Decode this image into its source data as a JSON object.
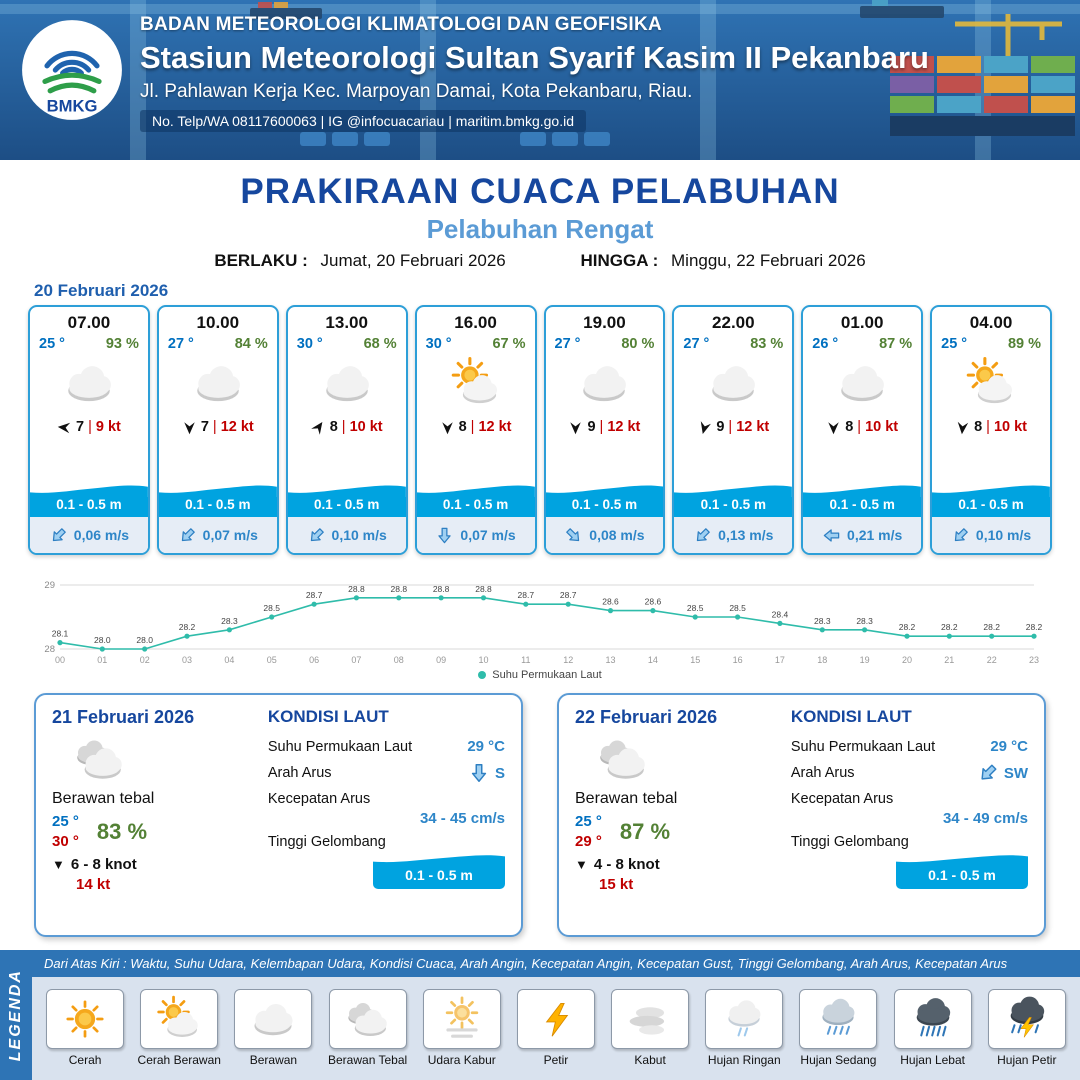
{
  "ui": {
    "separator": "|"
  },
  "header": {
    "org": "BADAN METEOROLOGI KLIMATOLOGI DAN GEOFISIKA",
    "station": "Stasiun Meteorologi Sultan Syarif Kasim II Pekanbaru",
    "address": "Jl. Pahlawan Kerja Kec. Marpoyan Damai, Kota Pekanbaru, Riau.",
    "contact": "No. Telp/WA 08117600063 | IG @infocuacariau | maritim.bmkg.go.id",
    "logo_text": "BMKG"
  },
  "title": {
    "main": "PRAKIRAAN CUACA PELABUHAN",
    "subtitle": "Pelabuhan Rengat",
    "valid_from_label": "BERLAKU :",
    "valid_from": "Jumat, 20 Februari 2026",
    "valid_to_label": "HINGGA :",
    "valid_to": "Minggu, 22 Februari 2026"
  },
  "forecast_date": "20 Februari 2026",
  "forecast_cards": [
    {
      "time": "07.00",
      "temp": "25 °",
      "humidity": "93 %",
      "icon": "berawan",
      "wind_dir_deg": 95,
      "wind_speed": "7",
      "gust": "9 kt",
      "wave_height": "0.1 - 0.5 m",
      "current_dir": "SW",
      "current_dir_deg": 45,
      "current_speed": "0,06 m/s"
    },
    {
      "time": "10.00",
      "temp": "27 °",
      "humidity": "84 %",
      "icon": "berawan",
      "wind_dir_deg": 0,
      "wind_speed": "7",
      "gust": "12 kt",
      "wave_height": "0.1 - 0.5 m",
      "current_dir": "SW",
      "current_dir_deg": 45,
      "current_speed": "0,07 m/s"
    },
    {
      "time": "13.00",
      "temp": "30 °",
      "humidity": "68 %",
      "icon": "berawan",
      "wind_dir_deg": 215,
      "wind_speed": "8",
      "gust": "10 kt",
      "wave_height": "0.1 - 0.5 m",
      "current_dir": "SW",
      "current_dir_deg": 45,
      "current_speed": "0,10 m/s"
    },
    {
      "time": "16.00",
      "temp": "30 °",
      "humidity": "67 %",
      "icon": "cerah-berawan",
      "wind_dir_deg": 0,
      "wind_speed": "8",
      "gust": "12 kt",
      "wave_height": "0.1 - 0.5 m",
      "current_dir": "S",
      "current_dir_deg": 0,
      "current_speed": "0,07 m/s"
    },
    {
      "time": "19.00",
      "temp": "27 °",
      "humidity": "80 %",
      "icon": "berawan",
      "wind_dir_deg": 0,
      "wind_speed": "9",
      "gust": "12 kt",
      "wave_height": "0.1 - 0.5 m",
      "current_dir": "SE",
      "current_dir_deg": -45,
      "current_speed": "0,08 m/s"
    },
    {
      "time": "22.00",
      "temp": "27 °",
      "humidity": "83 %",
      "icon": "berawan",
      "wind_dir_deg": 15,
      "wind_speed": "9",
      "gust": "12 kt",
      "wave_height": "0.1 - 0.5 m",
      "current_dir": "SW",
      "current_dir_deg": 45,
      "current_speed": "0,13 m/s"
    },
    {
      "time": "01.00",
      "temp": "26 °",
      "humidity": "87 %",
      "icon": "berawan",
      "wind_dir_deg": 0,
      "wind_speed": "8",
      "gust": "10 kt",
      "wave_height": "0.1 - 0.5 m",
      "current_dir": "W",
      "current_dir_deg": 90,
      "current_speed": "0,21 m/s"
    },
    {
      "time": "04.00",
      "temp": "25 °",
      "humidity": "89 %",
      "icon": "cerah-berawan",
      "wind_dir_deg": 5,
      "wind_speed": "8",
      "gust": "10 kt",
      "wave_height": "0.1 - 0.5 m",
      "current_dir": "SW",
      "current_dir_deg": 45,
      "current_speed": "0,10 m/s"
    }
  ],
  "chart_data": {
    "type": "line",
    "legend": "Suhu Permukaan Laut",
    "x": [
      "00",
      "01",
      "02",
      "03",
      "04",
      "05",
      "06",
      "07",
      "08",
      "09",
      "10",
      "11",
      "12",
      "13",
      "14",
      "15",
      "16",
      "17",
      "18",
      "19",
      "20",
      "21",
      "22",
      "23"
    ],
    "values": [
      28.1,
      28.0,
      28.0,
      28.2,
      28.3,
      28.5,
      28.7,
      28.8,
      28.8,
      28.8,
      28.8,
      28.7,
      28.7,
      28.6,
      28.6,
      28.5,
      28.5,
      28.4,
      28.3,
      28.3,
      28.2,
      28.2,
      28.2,
      28.2
    ],
    "ylim": [
      28,
      29
    ],
    "yticks": [
      28,
      29
    ],
    "line_color": "#2fbcaa",
    "grid": true,
    "legend_position": "bottom"
  },
  "day_cards": [
    {
      "date": "21 Februari 2026",
      "icon": "berawan-tebal",
      "condition": "Berawan tebal",
      "temp_min": "25 °",
      "temp_max": "30 °",
      "humidity": "83 %",
      "wind_arrow": "▼",
      "wind": "6 - 8 knot",
      "gust": "14 kt",
      "sea": {
        "title": "KONDISI LAUT",
        "sst_label": "Suhu Permukaan Laut",
        "sst": "29 °C",
        "current_dir_label": "Arah Arus",
        "current_dir": "S",
        "current_dir_deg": 0,
        "current_speed_label": "Kecepatan Arus",
        "current_speed": "34 - 45 cm/s",
        "wave_label": "Tinggi Gelombang",
        "wave": "0.1 - 0.5 m"
      }
    },
    {
      "date": "22 Februari 2026",
      "icon": "berawan-tebal",
      "condition": "Berawan tebal",
      "temp_min": "25 °",
      "temp_max": "29 °",
      "humidity": "87 %",
      "wind_arrow": "▼",
      "wind": "4 - 8 knot",
      "gust": "15 kt",
      "sea": {
        "title": "KONDISI LAUT",
        "sst_label": "Suhu Permukaan Laut",
        "sst": "29 °C",
        "current_dir_label": "Arah Arus",
        "current_dir": "SW",
        "current_dir_deg": 45,
        "current_speed_label": "Kecepatan Arus",
        "current_speed": "34 - 49 cm/s",
        "wave_label": "Tinggi Gelombang",
        "wave": "0.1 - 0.5 m"
      }
    }
  ],
  "legend": {
    "sidebar": "LEGENDA",
    "caption": "Dari Atas Kiri : Waktu, Suhu Udara, Kelembapan Udara, Kondisi Cuaca, Arah Angin, Kecepatan Angin, Kecepatan Gust, Tinggi Gelombang, Arah Arus, Kecepatan Arus",
    "items": [
      {
        "label": "Cerah",
        "icon": "cerah"
      },
      {
        "label": "Cerah Berawan",
        "icon": "cerah-berawan"
      },
      {
        "label": "Berawan",
        "icon": "berawan"
      },
      {
        "label": "Berawan Tebal",
        "icon": "berawan-tebal"
      },
      {
        "label": "Udara Kabur",
        "icon": "udara-kabur"
      },
      {
        "label": "Petir",
        "icon": "petir"
      },
      {
        "label": "Kabut",
        "icon": "kabut"
      },
      {
        "label": "Hujan Ringan",
        "icon": "hujan-ringan"
      },
      {
        "label": "Hujan Sedang",
        "icon": "hujan-sedang"
      },
      {
        "label": "Hujan Lebat",
        "icon": "hujan-lebat"
      },
      {
        "label": "Hujan Petir",
        "icon": "hujan-petir"
      }
    ]
  }
}
